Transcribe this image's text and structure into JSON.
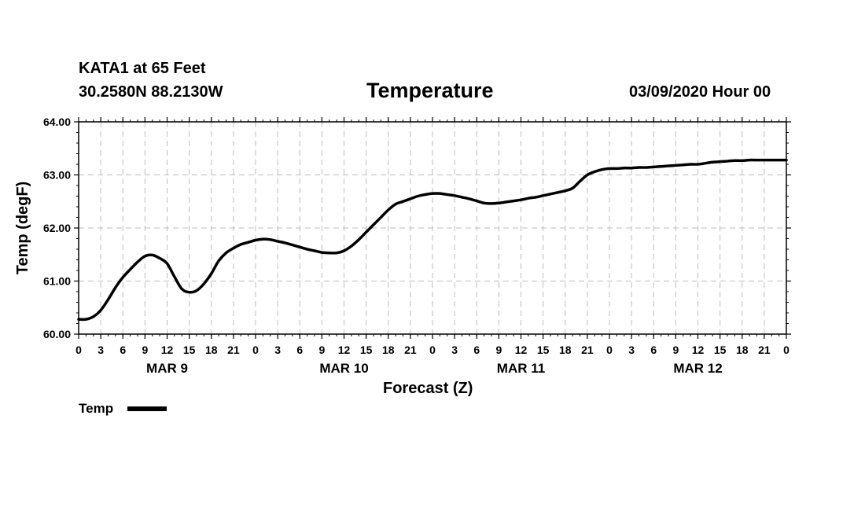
{
  "header": {
    "station": "KATA1 at 65 Feet",
    "coords": "30.2580N 88.2130W",
    "title": "Temperature",
    "run": "03/09/2020 Hour 00"
  },
  "chart_data": {
    "type": "line",
    "title": "Temperature",
    "xlabel": "Forecast (Z)",
    "ylabel": "Temp (degF)",
    "ylim": [
      60.0,
      64.0
    ],
    "yticks": [
      "60.00",
      "61.00",
      "62.00",
      "63.00",
      "64.00"
    ],
    "x_hours_range": [
      0,
      96
    ],
    "x_tick_labels": [
      "0",
      "3",
      "6",
      "9",
      "12",
      "15",
      "18",
      "21",
      "0",
      "3",
      "6",
      "9",
      "12",
      "15",
      "18",
      "21",
      "0",
      "3",
      "6",
      "9",
      "12",
      "15",
      "18",
      "21",
      "0",
      "3",
      "6",
      "9",
      "12",
      "15",
      "18",
      "21",
      "0"
    ],
    "day_labels": [
      {
        "label": "MAR 9",
        "hour": 12
      },
      {
        "label": "MAR 10",
        "hour": 36
      },
      {
        "label": "MAR 11",
        "hour": 60
      },
      {
        "label": "MAR 12",
        "hour": 84
      }
    ],
    "grid": true,
    "legend": "bottom-left",
    "series": [
      {
        "name": "Temp",
        "color": "#000000",
        "x": [
          0,
          1,
          2,
          3,
          4,
          5,
          6,
          7,
          8,
          9,
          10,
          11,
          12,
          13,
          14,
          15,
          16,
          17,
          18,
          19,
          20,
          21,
          22,
          23,
          24,
          25,
          26,
          27,
          28,
          29,
          30,
          31,
          32,
          33,
          34,
          35,
          36,
          37,
          38,
          39,
          40,
          41,
          42,
          43,
          44,
          45,
          46,
          47,
          48,
          49,
          50,
          51,
          52,
          53,
          54,
          55,
          56,
          57,
          58,
          59,
          60,
          61,
          62,
          63,
          64,
          65,
          66,
          67,
          68,
          69,
          70,
          71,
          72,
          73,
          74,
          75,
          76,
          77,
          78,
          79,
          80,
          81,
          82,
          83,
          84,
          85,
          86,
          87,
          88,
          89,
          90,
          91,
          92,
          93,
          94,
          95,
          96
        ],
        "values": [
          60.28,
          60.28,
          60.33,
          60.45,
          60.65,
          60.88,
          61.07,
          61.22,
          61.36,
          61.47,
          61.49,
          61.43,
          61.33,
          61.08,
          60.85,
          60.79,
          60.82,
          60.95,
          61.14,
          61.38,
          61.53,
          61.62,
          61.69,
          61.73,
          61.77,
          61.79,
          61.78,
          61.75,
          61.72,
          61.68,
          61.64,
          61.6,
          61.57,
          61.54,
          61.53,
          61.53,
          61.57,
          61.66,
          61.78,
          61.92,
          62.06,
          62.2,
          62.34,
          62.45,
          62.5,
          62.55,
          62.6,
          62.63,
          62.65,
          62.65,
          62.63,
          62.61,
          62.58,
          62.55,
          62.51,
          62.47,
          62.46,
          62.47,
          62.49,
          62.51,
          62.53,
          62.56,
          62.58,
          62.61,
          62.64,
          62.67,
          62.7,
          62.75,
          62.88,
          63.0,
          63.06,
          63.1,
          63.12,
          63.12,
          63.13,
          63.13,
          63.14,
          63.14,
          63.15,
          63.16,
          63.17,
          63.18,
          63.19,
          63.2,
          63.2,
          63.22,
          63.24,
          63.25,
          63.26,
          63.27,
          63.27,
          63.28,
          63.28,
          63.28,
          63.28,
          63.28,
          63.28
        ]
      }
    ]
  }
}
